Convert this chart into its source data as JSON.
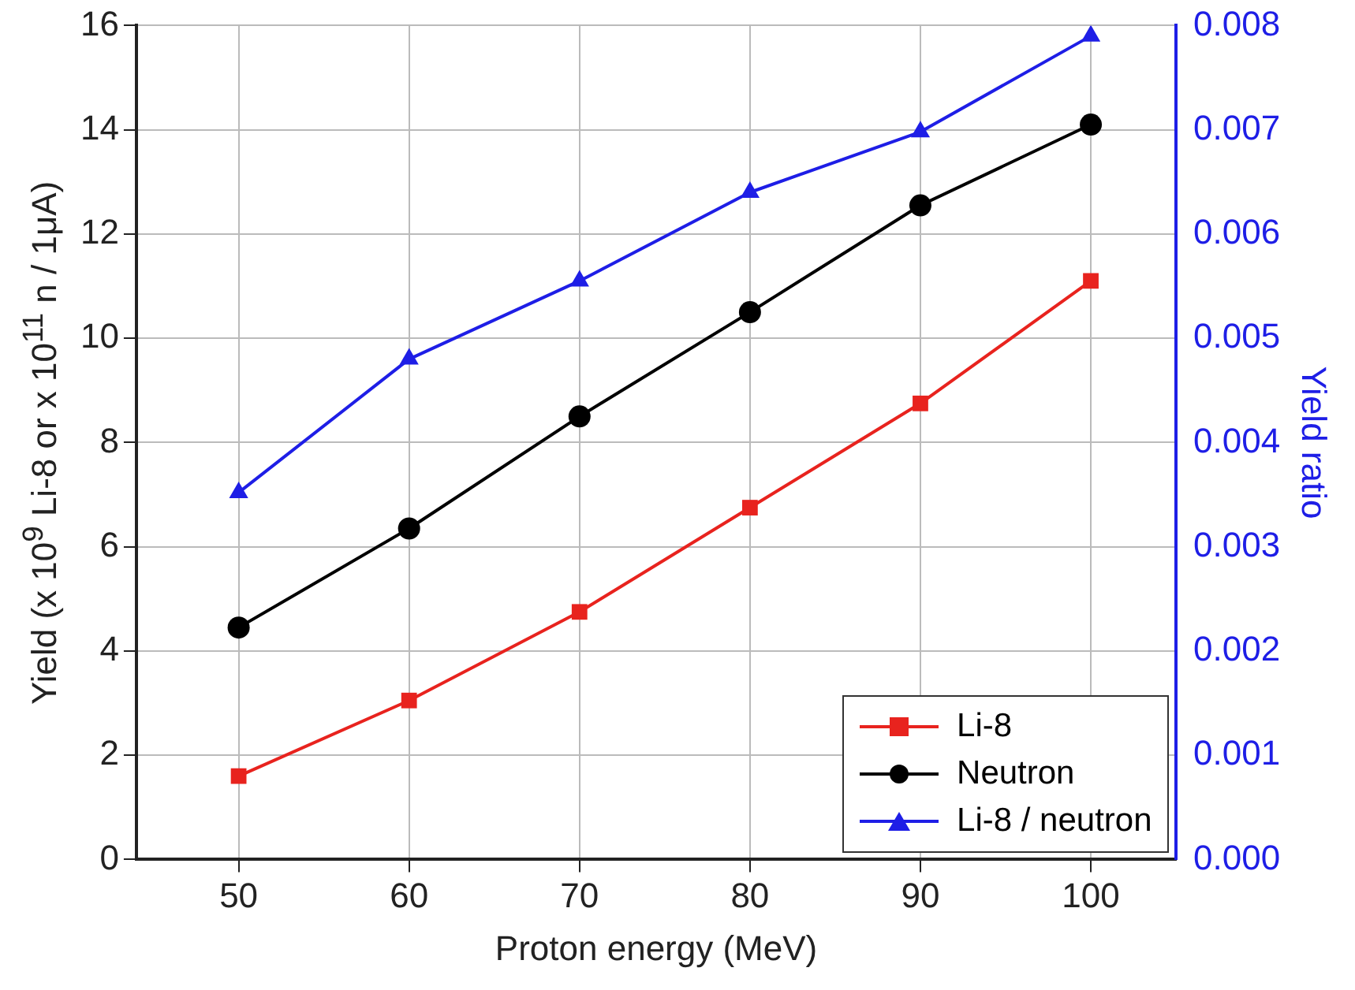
{
  "chart_data": {
    "type": "line",
    "xlabel": "Proton energy (MeV)",
    "ylabel": "Yield (x 10$^{9}$ Li-8 or x 10$^{11}$ n / 1μA)",
    "y2label": "Yield ratio",
    "x": [
      50,
      60,
      70,
      80,
      90,
      100
    ],
    "xlim": [
      44,
      105
    ],
    "xticks": [
      50,
      60,
      70,
      80,
      90,
      100
    ],
    "ylim": [
      0,
      16
    ],
    "yticks": [
      0,
      2,
      4,
      6,
      8,
      10,
      12,
      14,
      16
    ],
    "y2lim": [
      0,
      0.008
    ],
    "y2ticks": [
      {
        "value": 0,
        "label": "0.000"
      },
      {
        "value": 0.001,
        "label": "0.001"
      },
      {
        "value": 0.002,
        "label": "0.002"
      },
      {
        "value": 0.003,
        "label": "0.003"
      },
      {
        "value": 0.004,
        "label": "0.004"
      },
      {
        "value": 0.005,
        "label": "0.005"
      },
      {
        "value": 0.006,
        "label": "0.006"
      },
      {
        "value": 0.007,
        "label": "0.007"
      },
      {
        "value": 0.008,
        "label": "0.008"
      }
    ],
    "series": [
      {
        "name": "Li-8",
        "color": "#e8231e",
        "marker": "square",
        "values": [
          1.6,
          3.05,
          4.75,
          6.75,
          8.75,
          11.1
        ]
      },
      {
        "name": "Neutron",
        "color": "#000000",
        "marker": "circle",
        "values": [
          4.45,
          6.35,
          8.5,
          10.5,
          12.55,
          14.1
        ]
      },
      {
        "name": "Li-8 / neutron",
        "color": "#1e1ee6",
        "marker": "triangle",
        "axis": "y2",
        "values": [
          0.00352,
          0.0048,
          0.00555,
          0.0064,
          0.00698,
          0.0079
        ]
      }
    ],
    "grid": true,
    "legend": "bottom right",
    "line_style": "solid"
  }
}
